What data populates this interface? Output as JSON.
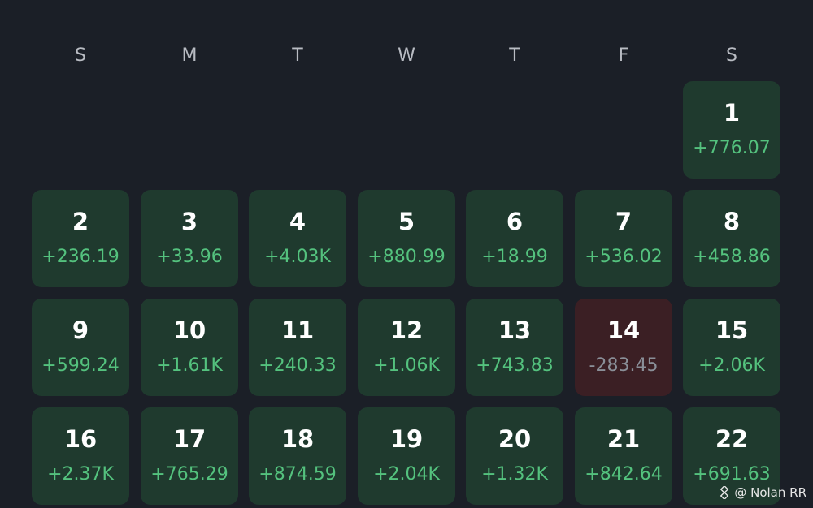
{
  "weekdays": [
    "S",
    "M",
    "T",
    "W",
    "T",
    "F",
    "S"
  ],
  "days": [
    {
      "day": "1",
      "pnl": "+776.07",
      "status": "positive"
    },
    {
      "day": "2",
      "pnl": "+236.19",
      "status": "positive"
    },
    {
      "day": "3",
      "pnl": "+33.96",
      "status": "positive"
    },
    {
      "day": "4",
      "pnl": "+4.03K",
      "status": "positive"
    },
    {
      "day": "5",
      "pnl": "+880.99",
      "status": "positive"
    },
    {
      "day": "6",
      "pnl": "+18.99",
      "status": "positive"
    },
    {
      "day": "7",
      "pnl": "+536.02",
      "status": "positive"
    },
    {
      "day": "8",
      "pnl": "+458.86",
      "status": "positive"
    },
    {
      "day": "9",
      "pnl": "+599.24",
      "status": "positive"
    },
    {
      "day": "10",
      "pnl": "+1.61K",
      "status": "positive"
    },
    {
      "day": "11",
      "pnl": "+240.33",
      "status": "positive"
    },
    {
      "day": "12",
      "pnl": "+1.06K",
      "status": "positive"
    },
    {
      "day": "13",
      "pnl": "+743.83",
      "status": "positive"
    },
    {
      "day": "14",
      "pnl": "-283.45",
      "status": "negative"
    },
    {
      "day": "15",
      "pnl": "+2.06K",
      "status": "positive"
    },
    {
      "day": "16",
      "pnl": "+2.37K",
      "status": "positive"
    },
    {
      "day": "17",
      "pnl": "+765.29",
      "status": "positive"
    },
    {
      "day": "18",
      "pnl": "+874.59",
      "status": "positive"
    },
    {
      "day": "19",
      "pnl": "+2.04K",
      "status": "positive"
    },
    {
      "day": "20",
      "pnl": "+1.32K",
      "status": "positive"
    },
    {
      "day": "21",
      "pnl": "+842.64",
      "status": "positive"
    },
    {
      "day": "22",
      "pnl": "+691.63",
      "status": "positive"
    }
  ],
  "watermark": {
    "text": "@ Nolan RR",
    "icon": "binance-square-icon"
  },
  "colors": {
    "background": "#1b1f27",
    "positive_cell": "#1f3a2e",
    "negative_cell": "#3b1f24",
    "positive_text": "#54c27e",
    "negative_text": "#8a8f98"
  }
}
